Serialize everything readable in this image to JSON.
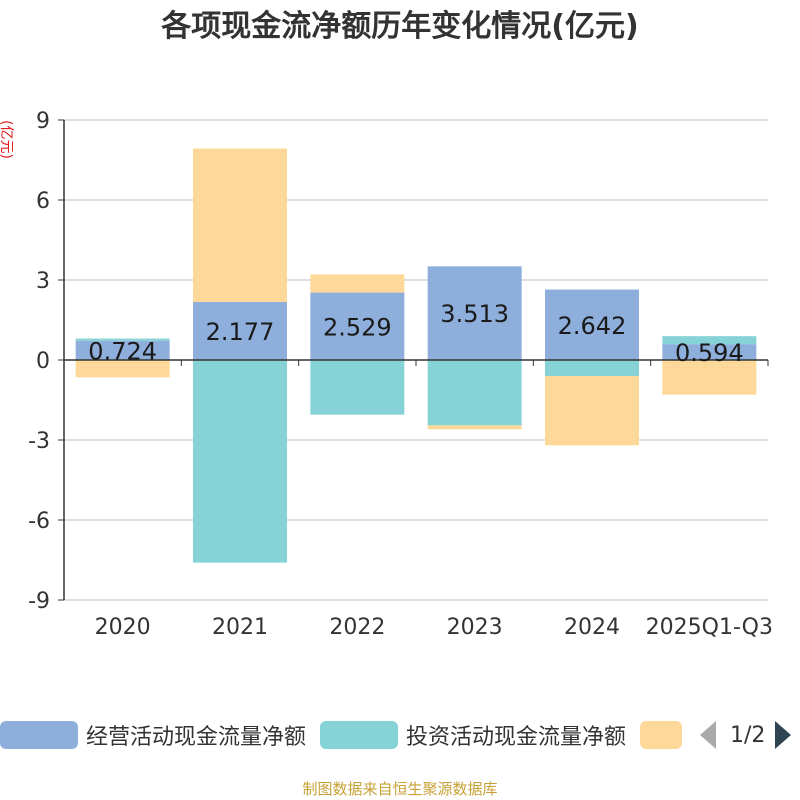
{
  "chart_data": {
    "type": "bar",
    "stacked": true,
    "title": "各项现金流净额历年变化情况(亿元)",
    "ylabel": "(亿元)",
    "xlabel": "",
    "categories": [
      "2020",
      "2021",
      "2022",
      "2023",
      "2024",
      "2025Q1-Q3"
    ],
    "ylim": [
      -9,
      9
    ],
    "yticks": [
      9,
      6,
      3,
      0,
      -3,
      -6,
      -9
    ],
    "yticks_labels": [
      "9",
      "6",
      "3",
      "0",
      "-3",
      "-6",
      "-9"
    ],
    "series": [
      {
        "name": "经营活动现金流量净额",
        "color": "#8eaedb",
        "values": [
          0.724,
          2.177,
          2.529,
          3.513,
          2.642,
          0.594
        ],
        "labels": [
          "0.724",
          "2.177",
          "2.529",
          "3.513",
          "2.642",
          "0.594"
        ]
      },
      {
        "name": "投资活动现金流量净额",
        "color": "#86d3d7",
        "values": [
          0.08,
          -7.6,
          -2.05,
          -2.45,
          -0.6,
          0.3
        ]
      },
      {
        "name": "",
        "color": "#fed898",
        "values": [
          -0.65,
          5.75,
          0.68,
          -0.15,
          -2.6,
          -1.3
        ]
      }
    ],
    "legend_position": "bottom"
  },
  "legend": {
    "items": [
      {
        "label": "经营活动现金流量净额",
        "color": "#8eaedb"
      },
      {
        "label": "投资活动现金流量净额",
        "color": "#86d3d7"
      },
      {
        "label": "",
        "color": "#fed898"
      }
    ],
    "page_text": "1/2"
  },
  "source": "制图数据来自恒生聚源数据库"
}
